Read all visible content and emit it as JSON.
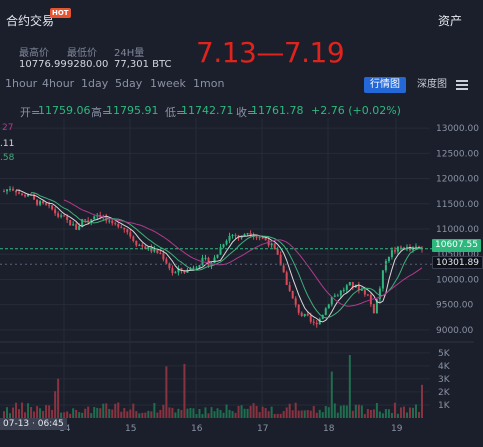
{
  "header": {
    "title": "合约交易",
    "hot": "HOT",
    "assets": "资产"
  },
  "stats": [
    {
      "label": "最高价",
      "value": "10776.99"
    },
    {
      "label": "最低价",
      "value": "9280.00"
    },
    {
      "label": "24H量",
      "value": "77,301 BTC"
    }
  ],
  "week_label": "7.13—7.19",
  "timeframes": [
    "1hour",
    "4hour",
    "1day",
    "5day",
    "1week",
    "1mon"
  ],
  "buttons": {
    "chart": "行情图",
    "depth": "深度图"
  },
  "ohlc": {
    "open_label": "开=",
    "open": "11759.06",
    "high_label": "高=",
    "high": "11795.91",
    "low_label": "低=",
    "low": "11742.71",
    "close_label": "收=",
    "close": "11761.78",
    "change": "+2.76 (+0.02%)"
  },
  "left_edge": [
    "27",
    ".11",
    ".58"
  ],
  "price_tags": {
    "current": "10607.55",
    "level": "10301.89"
  },
  "colors": {
    "up": "#2eb87e",
    "down": "#d94a5a",
    "accent": "#2468d8",
    "title_red": "#e0231c",
    "ma_fast": "#d9d9d9",
    "ma_mid": "#3fae7a",
    "ma_slow": "#b03a8c"
  },
  "chart_data": {
    "type": "candlestick",
    "y_axis": {
      "ticks": [
        "13000.00",
        "12500.00",
        "12000.00",
        "11500.00",
        "11000.00",
        "10500.00",
        "10000.00",
        "9500.00",
        "9000.00"
      ],
      "range": [
        8800,
        13200
      ]
    },
    "volume_axis": {
      "ticks": [
        "5K",
        "4K",
        "3K",
        "2K",
        "1K"
      ],
      "range": [
        0,
        5600
      ]
    },
    "x_axis": {
      "ticks": [
        "14",
        "15",
        "16",
        "17",
        "18",
        "19"
      ]
    },
    "crosshair_label": "07-13 · 06:45",
    "close_path": [
      [
        0,
        11750
      ],
      [
        4,
        11820
      ],
      [
        8,
        11760
      ],
      [
        12,
        11650
      ],
      [
        16,
        11700
      ],
      [
        20,
        11550
      ],
      [
        24,
        11500
      ],
      [
        28,
        11450
      ],
      [
        32,
        11380
      ],
      [
        36,
        11250
      ],
      [
        40,
        11200
      ],
      [
        44,
        11100
      ],
      [
        48,
        11000
      ],
      [
        52,
        11200
      ],
      [
        56,
        11150
      ],
      [
        60,
        11300
      ],
      [
        64,
        11280
      ],
      [
        68,
        11150
      ],
      [
        72,
        11050
      ],
      [
        76,
        11100
      ],
      [
        80,
        11000
      ],
      [
        84,
        10850
      ],
      [
        88,
        10700
      ],
      [
        92,
        10650
      ],
      [
        96,
        10600
      ],
      [
        100,
        10550
      ],
      [
        104,
        10500
      ],
      [
        108,
        10300
      ],
      [
        112,
        10100
      ],
      [
        116,
        10200
      ],
      [
        120,
        10150
      ],
      [
        124,
        10250
      ],
      [
        128,
        10300
      ],
      [
        132,
        10400
      ],
      [
        136,
        10300
      ],
      [
        140,
        10450
      ],
      [
        144,
        10700
      ],
      [
        148,
        10850
      ],
      [
        152,
        10900
      ],
      [
        156,
        10800
      ],
      [
        160,
        10950
      ],
      [
        164,
        10900
      ],
      [
        168,
        10850
      ],
      [
        172,
        10800
      ],
      [
        176,
        10700
      ],
      [
        180,
        10500
      ],
      [
        184,
        10200
      ],
      [
        188,
        9800
      ],
      [
        192,
        9500
      ],
      [
        196,
        9300
      ],
      [
        200,
        9250
      ],
      [
        204,
        9100
      ],
      [
        208,
        9200
      ],
      [
        212,
        9400
      ],
      [
        216,
        9650
      ],
      [
        220,
        9700
      ],
      [
        224,
        9800
      ],
      [
        228,
        9900
      ],
      [
        232,
        9850
      ],
      [
        236,
        9800
      ],
      [
        240,
        9700
      ],
      [
        244,
        9350
      ],
      [
        248,
        9800
      ],
      [
        252,
        10400
      ],
      [
        256,
        10550
      ],
      [
        260,
        10600
      ],
      [
        264,
        10650
      ],
      [
        268,
        10580
      ],
      [
        272,
        10620
      ],
      [
        276,
        10607
      ]
    ]
  }
}
